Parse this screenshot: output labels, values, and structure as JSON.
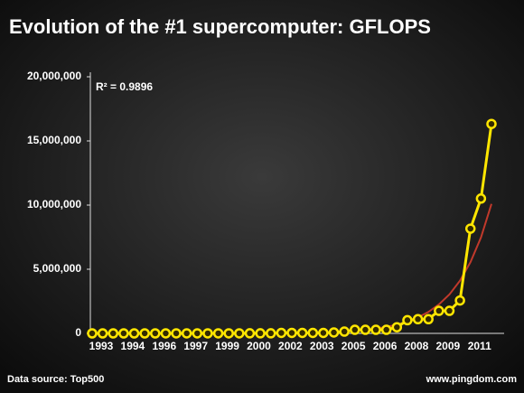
{
  "chart_data": {
    "type": "line",
    "title": "Evolution of the #1 supercomputer: GFLOPS",
    "annotation": "R² = 0.9896",
    "source": "Data source: Top500",
    "credit": "www.pingdom.com",
    "categories": [
      "1993",
      null,
      null,
      "1994",
      null,
      null,
      "1996",
      null,
      null,
      "1997",
      null,
      null,
      "1999",
      null,
      null,
      "2000",
      null,
      null,
      "2002",
      null,
      null,
      "2003",
      null,
      null,
      "2005",
      null,
      null,
      "2006",
      null,
      null,
      "2008",
      null,
      null,
      "2009",
      null,
      null,
      "2011",
      null,
      null
    ],
    "series": [
      {
        "color": "#ffe600",
        "markers": true,
        "values": [
          59.7,
          124,
          143.4,
          170,
          170,
          170,
          220.4,
          368.2,
          1068,
          1338,
          1338,
          1338,
          2121,
          2379,
          2379,
          4938,
          7226,
          7226,
          35860,
          35860,
          35860,
          35860,
          35860,
          70720,
          136800,
          280600,
          280600,
          280600,
          280600,
          478200,
          1026000,
          1105000,
          1105000,
          1759000,
          1759000,
          2566000,
          8162000,
          10510000,
          16324751
        ]
      },
      {
        "color": "#c0392b",
        "markers": false,
        "values": [
          113,
          153,
          206,
          278,
          375,
          506,
          684,
          923,
          1245,
          1681,
          2270,
          3063,
          4136,
          5582,
          7537,
          10170,
          13730,
          18532,
          25018,
          33776,
          45584,
          61540,
          83066,
          112130,
          151352,
          204304,
          275833,
          372222,
          502511,
          678339,
          915639,
          1235994,
          1668445,
          2252090,
          3040039,
          4103708,
          5539373,
          7477323,
          10093273
        ]
      }
    ],
    "ylim": [
      0,
      20000000
    ],
    "yticks": [
      {
        "value": 0,
        "label": "0"
      },
      {
        "value": 5000000,
        "label": "5,000,000"
      },
      {
        "value": 10000000,
        "label": "10,000,000"
      },
      {
        "value": 15000000,
        "label": "15,000,000"
      },
      {
        "value": 20000000,
        "label": "20,000,000"
      }
    ]
  }
}
